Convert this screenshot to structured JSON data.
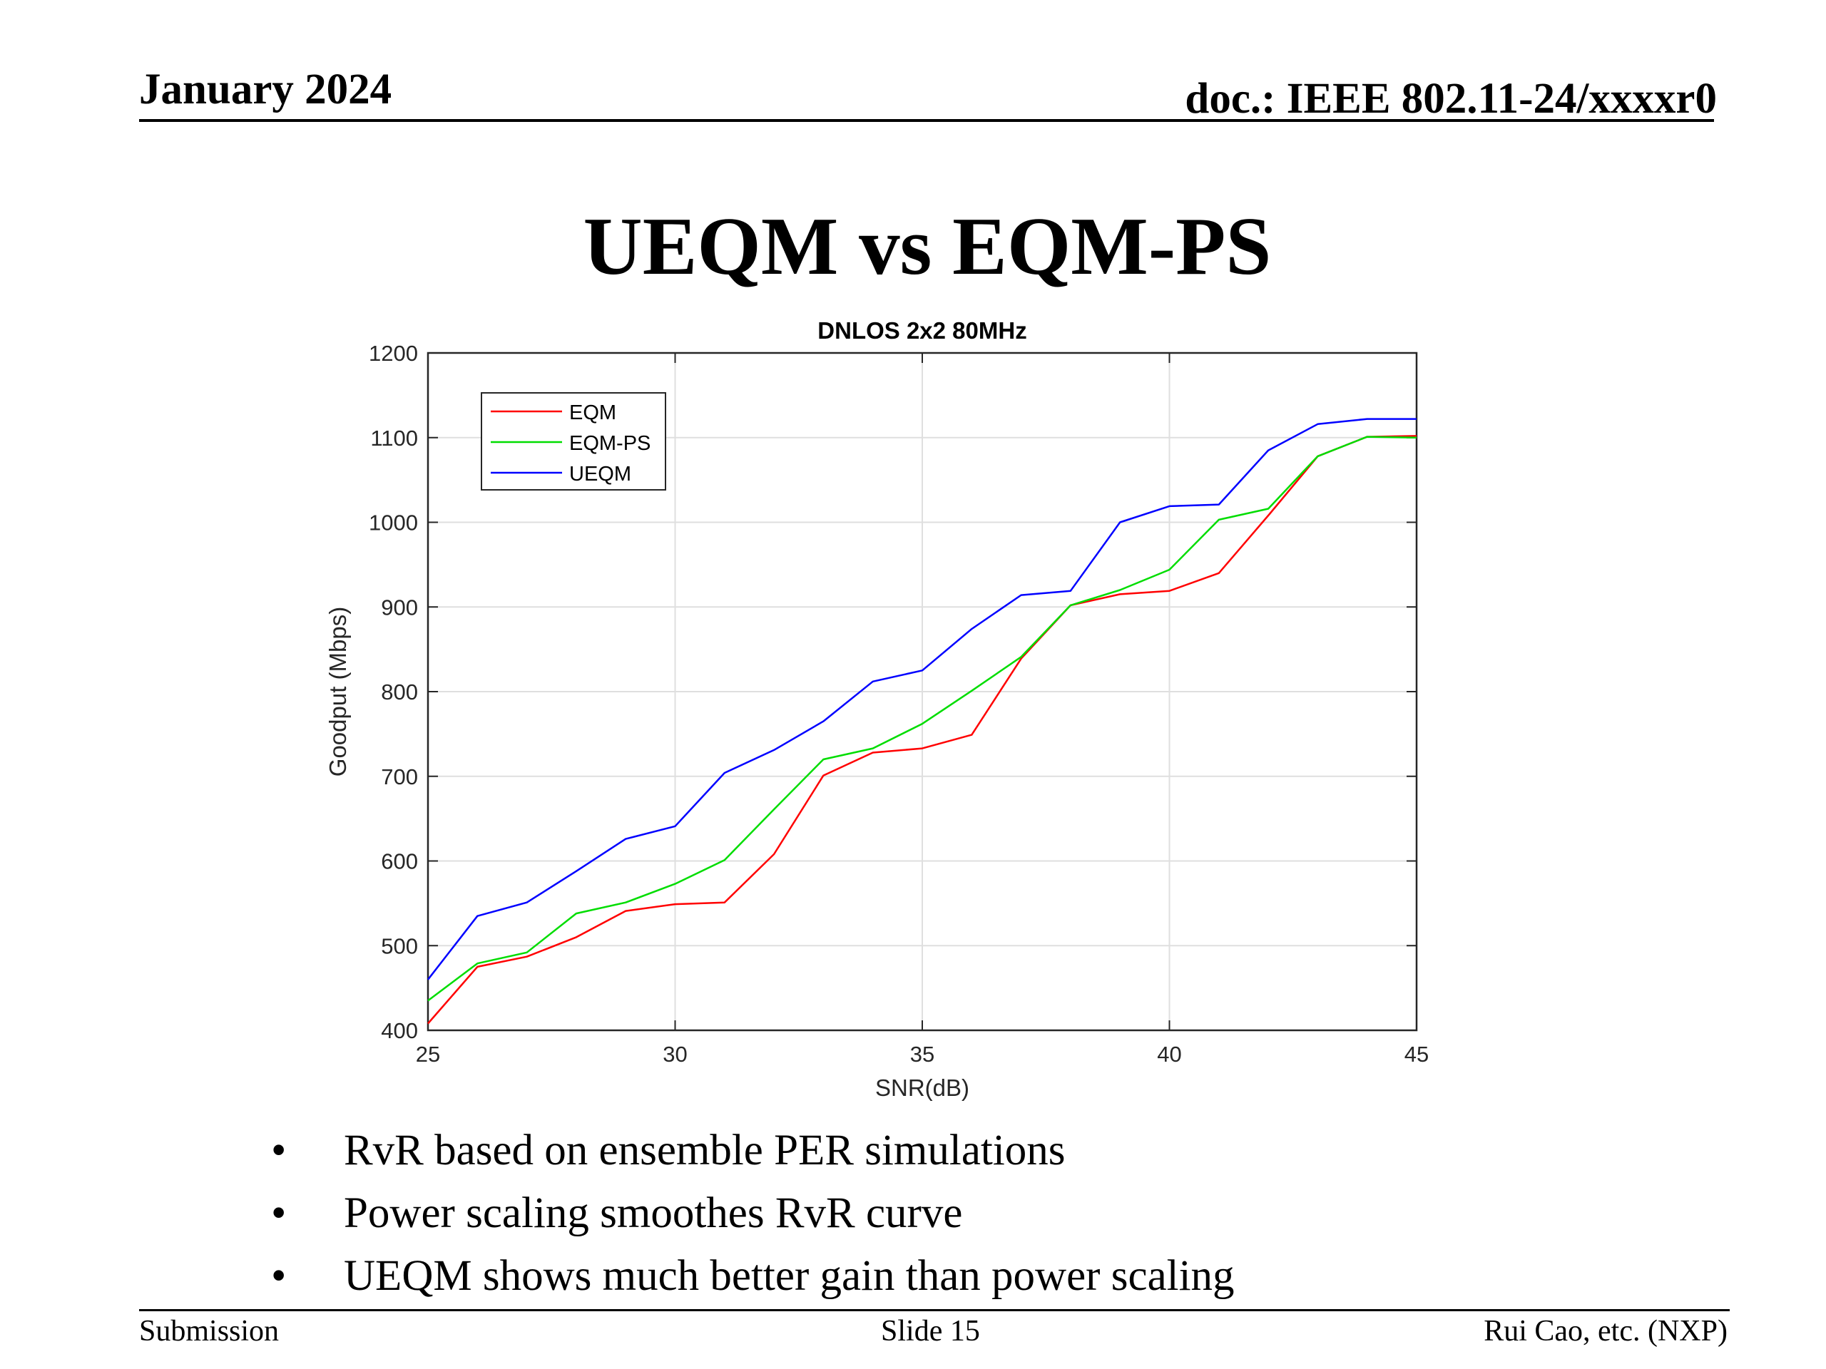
{
  "header": {
    "date": "January 2024",
    "doc": "doc.: IEEE 802.11-24/xxxxr0"
  },
  "slide": {
    "title": "UEQM vs EQM-PS"
  },
  "chart_data": {
    "type": "line",
    "title": "DNLOS 2x2 80MHz",
    "xlabel": "SNR(dB)",
    "ylabel": "Goodput (Mbps)",
    "xlim": [
      25,
      45
    ],
    "ylim": [
      400,
      1200
    ],
    "xticks": [
      25,
      30,
      35,
      40,
      45
    ],
    "yticks": [
      400,
      500,
      600,
      700,
      800,
      900,
      1000,
      1100,
      1200
    ],
    "grid": true,
    "legend_position": "top-left",
    "x": [
      25,
      26,
      27,
      28,
      29,
      30,
      31,
      32,
      33,
      34,
      35,
      36,
      37,
      38,
      39,
      40,
      41,
      42,
      43,
      44,
      45
    ],
    "series": [
      {
        "name": "EQM",
        "color": "#ff0000",
        "values": [
          408,
          475,
          487,
          510,
          541,
          549,
          551,
          608,
          701,
          728,
          733,
          749,
          839,
          902,
          915,
          919,
          940,
          1008,
          1078,
          1101,
          1102
        ]
      },
      {
        "name": "EQM-PS",
        "color": "#00dd00",
        "values": [
          435,
          479,
          492,
          538,
          551,
          573,
          601,
          661,
          720,
          733,
          762,
          801,
          841,
          902,
          920,
          944,
          1003,
          1016,
          1078,
          1101,
          1100
        ]
      },
      {
        "name": "UEQM",
        "color": "#0000ff",
        "values": [
          460,
          535,
          551,
          588,
          626,
          641,
          704,
          731,
          765,
          812,
          825,
          874,
          914,
          919,
          1000,
          1019,
          1021,
          1085,
          1116,
          1122,
          1122
        ]
      }
    ]
  },
  "bullets": [
    "RvR based on ensemble PER simulations",
    "Power scaling smoothes RvR curve",
    "UEQM shows much better gain than power scaling"
  ],
  "bullet_symbol": "•",
  "footer": {
    "left": "Submission",
    "center": "Slide 15",
    "right": "Rui Cao, etc. (NXP)"
  }
}
